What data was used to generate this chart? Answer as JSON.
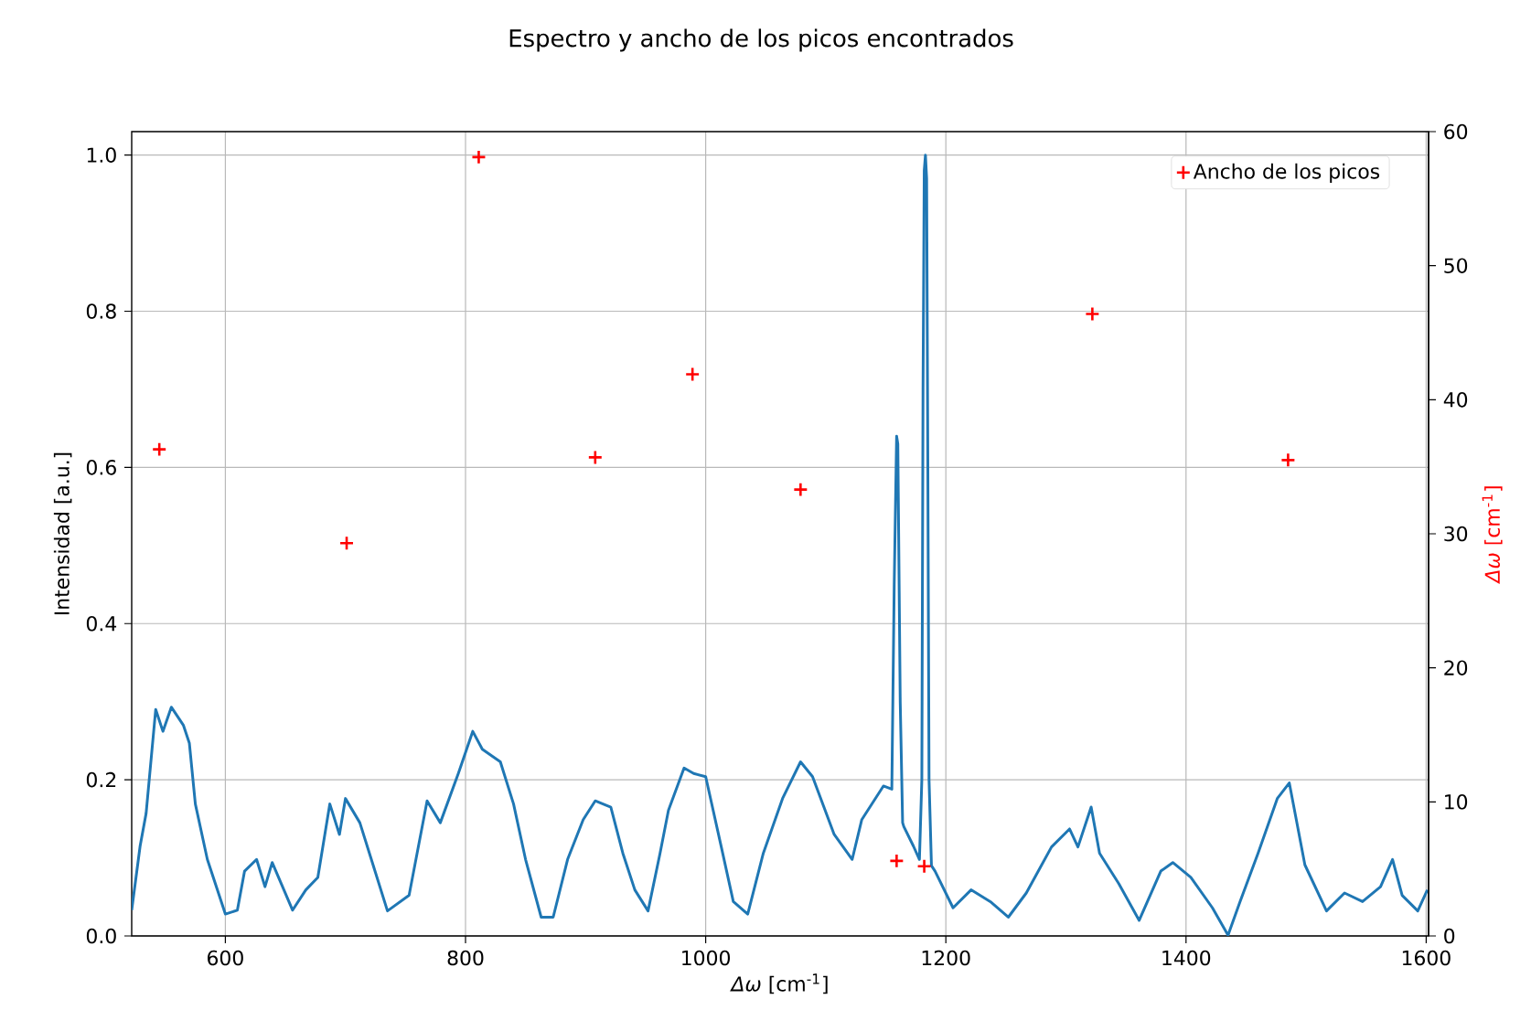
{
  "chart_data": {
    "type": "line",
    "title": "Espectro y ancho de los picos encontrados",
    "xlabel": "*Δω* [cm$^{-1}$]",
    "ylabel": "Intensidad [a.u.]",
    "y2label": "*Δω* [cm$^{-1}$]",
    "xlim": [
      522,
      1602
    ],
    "ylim": [
      0,
      1.03
    ],
    "y2lim": [
      0,
      60
    ],
    "xticks": [
      600,
      800,
      1000,
      1200,
      1400,
      1600
    ],
    "yticks": [
      {
        "value": 0,
        "label": "0.0"
      },
      {
        "value": 0.2,
        "label": "0.2"
      },
      {
        "value": 0.4,
        "label": "0.4"
      },
      {
        "value": 0.6,
        "label": "0.6"
      },
      {
        "value": 0.8,
        "label": "0.8"
      },
      {
        "value": 1.0,
        "label": "1.0"
      }
    ],
    "y2ticks": [
      0,
      10,
      20,
      30,
      40,
      50,
      60
    ],
    "grid": true,
    "legend": "top right",
    "series": [
      {
        "color": "#1f77b4",
        "x": [
          522,
          529,
          534,
          542,
          548,
          555,
          565,
          570,
          575,
          585,
          600,
          610,
          616,
          626,
          633,
          639,
          656,
          667,
          677,
          687,
          695,
          700,
          712,
          723,
          735,
          753,
          768,
          779,
          794,
          806,
          814,
          829,
          840,
          850,
          863,
          873,
          885,
          898,
          908,
          921,
          931,
          941,
          952,
          962,
          969,
          982,
          990,
          1000,
          1013,
          1023,
          1035,
          1048,
          1064,
          1079,
          1089,
          1107,
          1122,
          1130,
          1148,
          1155,
          1157,
          1159,
          1160,
          1162,
          1164,
          1165,
          1173,
          1178,
          1180,
          1181,
          1182,
          1183,
          1184,
          1185,
          1186,
          1188,
          1191,
          1206,
          1221,
          1237,
          1252,
          1267,
          1277,
          1288,
          1303,
          1310,
          1321,
          1328,
          1344,
          1361,
          1379,
          1389,
          1404,
          1422,
          1435,
          1445,
          1460,
          1476,
          1486,
          1499,
          1517,
          1532,
          1547,
          1562,
          1572,
          1580,
          1593,
          1601
        ],
        "values": [
          0.033,
          0.115,
          0.157,
          0.29,
          0.262,
          0.293,
          0.27,
          0.247,
          0.169,
          0.098,
          0.028,
          0.033,
          0.083,
          0.098,
          0.063,
          0.094,
          0.033,
          0.059,
          0.075,
          0.169,
          0.13,
          0.176,
          0.145,
          0.091,
          0.032,
          0.052,
          0.173,
          0.145,
          0.208,
          0.262,
          0.239,
          0.223,
          0.169,
          0.098,
          0.024,
          0.024,
          0.098,
          0.149,
          0.173,
          0.165,
          0.106,
          0.059,
          0.032,
          0.106,
          0.161,
          0.215,
          0.208,
          0.204,
          0.114,
          0.044,
          0.028,
          0.106,
          0.176,
          0.223,
          0.204,
          0.13,
          0.098,
          0.149,
          0.192,
          0.188,
          0.45,
          0.64,
          0.63,
          0.3,
          0.145,
          0.14,
          0.115,
          0.098,
          0.2,
          0.7,
          0.98,
          1.0,
          0.97,
          0.6,
          0.2,
          0.09,
          0.083,
          0.036,
          0.059,
          0.044,
          0.024,
          0.055,
          0.083,
          0.114,
          0.137,
          0.114,
          0.165,
          0.106,
          0.067,
          0.02,
          0.083,
          0.094,
          0.075,
          0.036,
          0.001,
          0.044,
          0.106,
          0.176,
          0.196,
          0.091,
          0.032,
          0.055,
          0.044,
          0.063,
          0.098,
          0.052,
          0.032,
          0.059
        ]
      },
      {
        "type": "scatter",
        "name": "Ancho de los picos",
        "color": "#ff0000",
        "axis": "y2",
        "marker": "cross",
        "x": [
          545,
          701,
          811,
          908,
          989,
          1079,
          1159,
          1182,
          1322,
          1485
        ],
        "values": [
          36.3,
          29.3,
          58.1,
          35.7,
          41.9,
          33.3,
          5.6,
          5.2,
          46.4,
          35.5
        ]
      }
    ]
  }
}
